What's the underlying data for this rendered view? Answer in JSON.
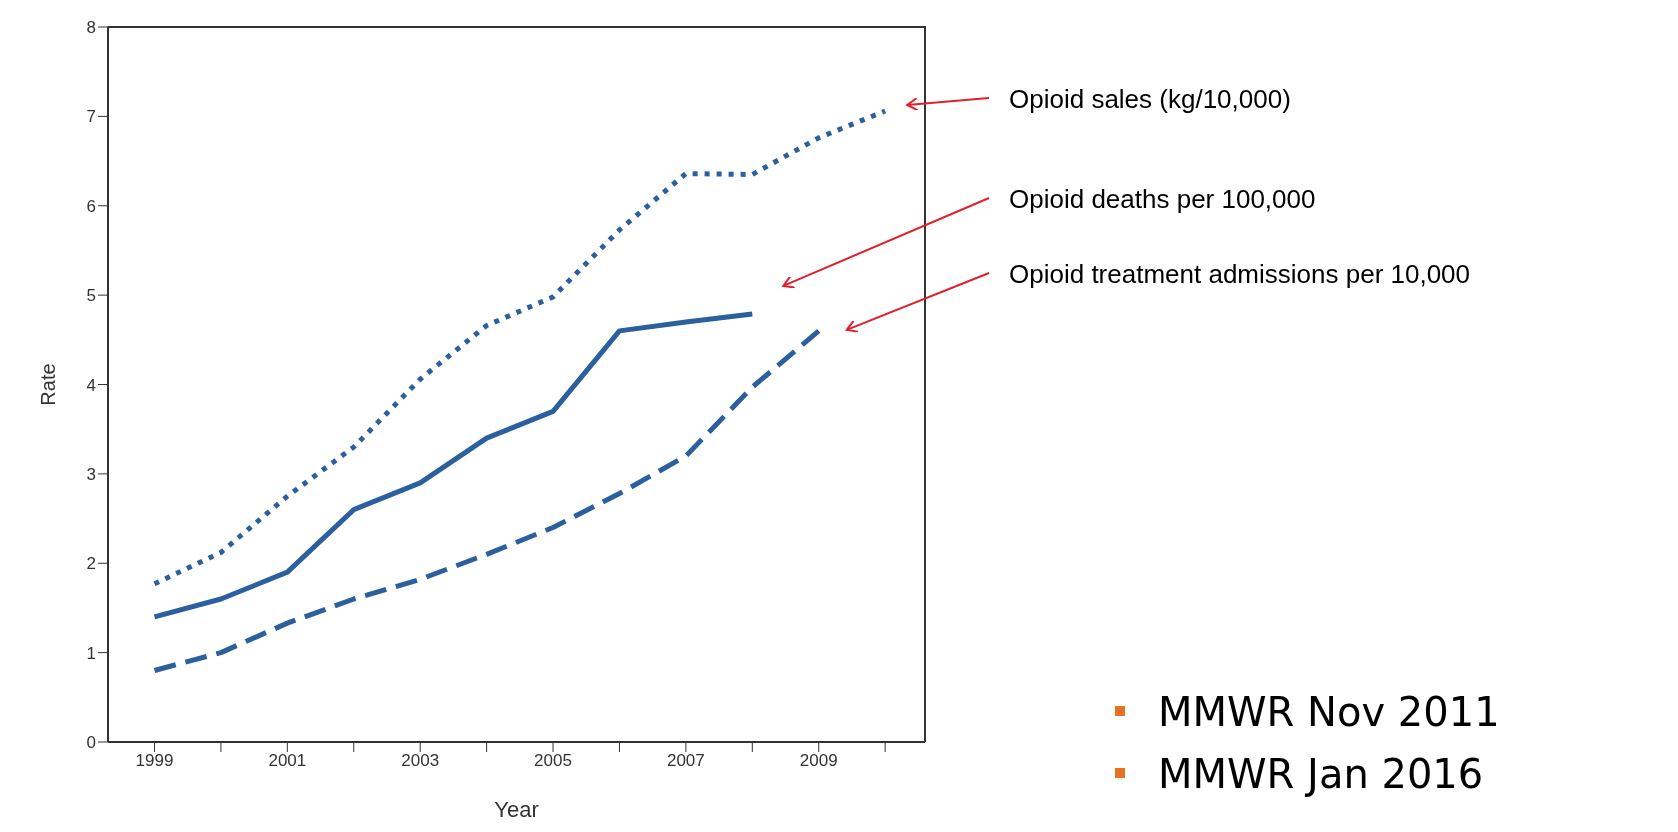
{
  "chart_data": {
    "type": "line",
    "xlabel": "Year",
    "ylabel": "Rate",
    "x": [
      1999,
      2000,
      2001,
      2002,
      2003,
      2004,
      2005,
      2006,
      2007,
      2008,
      2009,
      2010
    ],
    "xlim": [
      1998.3,
      2010.6
    ],
    "xticks": [
      1999,
      {
        "value": 2000,
        "label": null
      },
      2001,
      {
        "value": 2002,
        "label": null
      },
      2003,
      {
        "value": 2004,
        "label": null
      },
      2005,
      {
        "value": 2006,
        "label": null
      },
      2007,
      {
        "value": 2008,
        "label": null
      },
      2009,
      {
        "value": 2010,
        "label": null
      }
    ],
    "ylim": [
      0,
      8
    ],
    "yticks": [
      0,
      1,
      2,
      3,
      4,
      5,
      6,
      7,
      8
    ],
    "marker": "none",
    "series": [
      {
        "name": "Opioid sales (kg/10,000)",
        "color": "#2b5f9e",
        "line_style": "dotted",
        "values": [
          1.77,
          2.12,
          2.75,
          3.3,
          4.06,
          4.66,
          4.98,
          5.73,
          6.36,
          6.35,
          6.76,
          7.06
        ]
      },
      {
        "name": "Opioid deaths per 100,000",
        "color": "#2b5f9e",
        "line_style": "solid",
        "values": [
          1.4,
          1.6,
          1.9,
          2.6,
          2.9,
          3.4,
          3.7,
          4.6,
          4.7,
          4.79,
          null,
          null
        ]
      },
      {
        "name": "Opioid treatment admissions per 10,000",
        "color": "#2b5f9e",
        "line_style": "dashed",
        "values": [
          0.8,
          1.0,
          1.33,
          1.6,
          1.82,
          2.1,
          2.4,
          2.78,
          3.2,
          3.97,
          4.6,
          null
        ]
      }
    ],
    "annotations": [
      "MMWR Nov 2011",
      "MMWR Jan 2016"
    ]
  }
}
